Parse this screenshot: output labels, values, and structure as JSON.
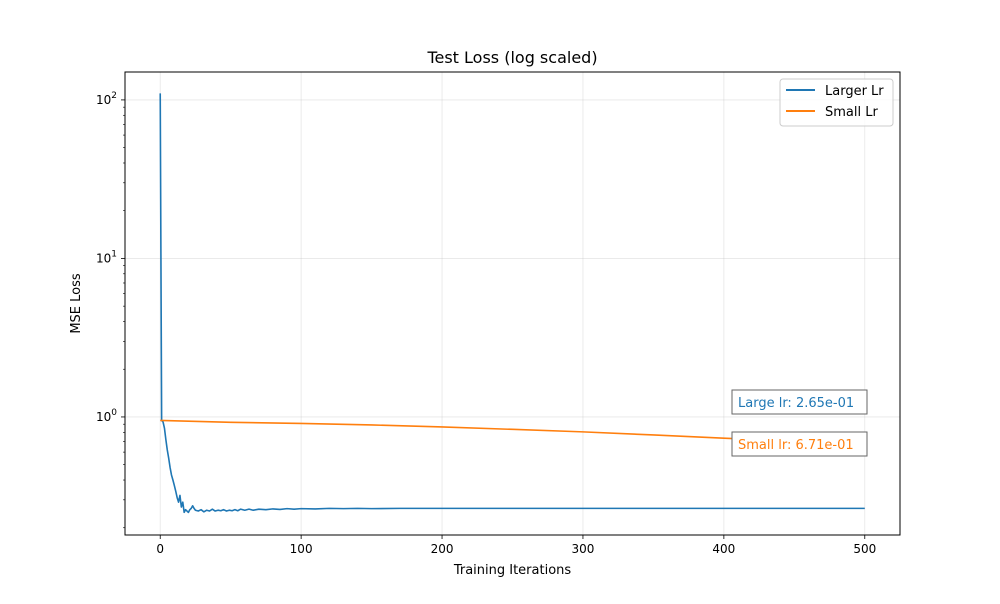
{
  "chart_data": {
    "type": "line",
    "title": "Test Loss (log scaled)",
    "xlabel": "Training Iterations",
    "ylabel": "MSE Loss",
    "xlim": [
      -25,
      525
    ],
    "ylim": [
      0.18,
      150
    ],
    "yscale": "log",
    "grid": true,
    "legend_position": "top-right",
    "x_ticks": [
      0,
      100,
      200,
      300,
      400,
      500
    ],
    "x_tick_labels": [
      "0",
      "100",
      "200",
      "300",
      "400",
      "500"
    ],
    "y_ticks": [
      1,
      10,
      100
    ],
    "y_tick_labels": [
      {
        "base": "10",
        "exp": "0"
      },
      {
        "base": "10",
        "exp": "1"
      },
      {
        "base": "10",
        "exp": "2"
      }
    ],
    "series": [
      {
        "name": "Larger Lr",
        "color": "#1f77b4",
        "points": [
          [
            0,
            110
          ],
          [
            1,
            0.95
          ],
          [
            2,
            0.93
          ],
          [
            3,
            0.85
          ],
          [
            4,
            0.72
          ],
          [
            5,
            0.62
          ],
          [
            6,
            0.55
          ],
          [
            7,
            0.48
          ],
          [
            8,
            0.43
          ],
          [
            9,
            0.4
          ],
          [
            10,
            0.37
          ],
          [
            11,
            0.34
          ],
          [
            12,
            0.31
          ],
          [
            13,
            0.29
          ],
          [
            14,
            0.32
          ],
          [
            15,
            0.27
          ],
          [
            16,
            0.29
          ],
          [
            17,
            0.25
          ],
          [
            18,
            0.26
          ],
          [
            19,
            0.255
          ],
          [
            20,
            0.25
          ],
          [
            21,
            0.26
          ],
          [
            22,
            0.265
          ],
          [
            23,
            0.275
          ],
          [
            24,
            0.265
          ],
          [
            25,
            0.258
          ],
          [
            27,
            0.255
          ],
          [
            29,
            0.26
          ],
          [
            31,
            0.252
          ],
          [
            33,
            0.258
          ],
          [
            35,
            0.255
          ],
          [
            37,
            0.262
          ],
          [
            39,
            0.255
          ],
          [
            41,
            0.258
          ],
          [
            43,
            0.256
          ],
          [
            45,
            0.26
          ],
          [
            47,
            0.255
          ],
          [
            49,
            0.258
          ],
          [
            51,
            0.256
          ],
          [
            53,
            0.26
          ],
          [
            55,
            0.256
          ],
          [
            57,
            0.262
          ],
          [
            60,
            0.258
          ],
          [
            63,
            0.262
          ],
          [
            66,
            0.258
          ],
          [
            70,
            0.262
          ],
          [
            75,
            0.26
          ],
          [
            80,
            0.263
          ],
          [
            85,
            0.261
          ],
          [
            90,
            0.264
          ],
          [
            95,
            0.262
          ],
          [
            100,
            0.264
          ],
          [
            110,
            0.263
          ],
          [
            120,
            0.265
          ],
          [
            130,
            0.264
          ],
          [
            140,
            0.265
          ],
          [
            150,
            0.264
          ],
          [
            170,
            0.265
          ],
          [
            200,
            0.265
          ],
          [
            250,
            0.265
          ],
          [
            300,
            0.265
          ],
          [
            350,
            0.265
          ],
          [
            400,
            0.265
          ],
          [
            450,
            0.265
          ],
          [
            500,
            0.265
          ]
        ]
      },
      {
        "name": "Small Lr",
        "color": "#ff7f0e",
        "points": [
          [
            0,
            0.95
          ],
          [
            50,
            0.925
          ],
          [
            100,
            0.91
          ],
          [
            150,
            0.89
          ],
          [
            200,
            0.865
          ],
          [
            250,
            0.835
          ],
          [
            300,
            0.805
          ],
          [
            350,
            0.77
          ],
          [
            400,
            0.735
          ],
          [
            450,
            0.703
          ],
          [
            500,
            0.671
          ]
        ]
      }
    ],
    "annotations": [
      {
        "text": "Large lr: 2.65e-01",
        "color": "#1f77b4"
      },
      {
        "text": "Small lr: 6.71e-01",
        "color": "#ff7f0e"
      }
    ]
  }
}
